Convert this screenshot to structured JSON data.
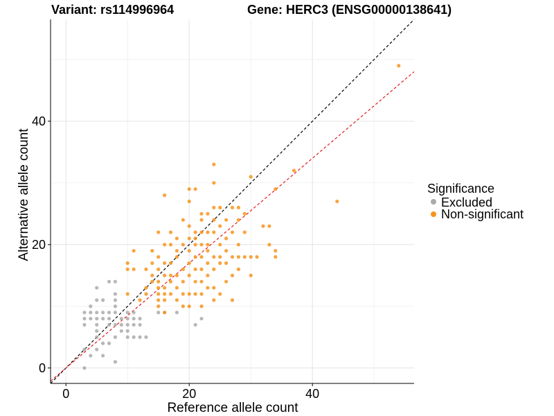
{
  "chart_data": {
    "type": "scatter",
    "title_left": "Variant: rs114996964",
    "title_right": "Gene: HERC3 (ENSG00000138641)",
    "xlabel": "Reference allele count",
    "ylabel": "Alternative allele count",
    "xlim": [
      -2.5,
      56.5
    ],
    "ylim": [
      -2.5,
      56.5
    ],
    "xticks": [
      0,
      20,
      40
    ],
    "yticks": [
      0,
      20,
      40
    ],
    "grid": true,
    "legend": {
      "title": "Significance",
      "position": "right",
      "entries": [
        {
          "label": "Excluded",
          "color": "#aaaaaa"
        },
        {
          "label": "Non-significant",
          "color": "#f7941d"
        }
      ]
    },
    "reference_lines": [
      {
        "name": "identity",
        "slope": 1,
        "intercept": 0,
        "color": "#000000",
        "style": "dashed"
      },
      {
        "name": "fitted",
        "slope": 0.85,
        "intercept": 0,
        "color": "#e41a1c",
        "style": "dashed"
      }
    ],
    "series": [
      {
        "name": "Excluded",
        "color": "#aaaaaa",
        "points": [
          [
            3,
            0
          ],
          [
            3,
            3
          ],
          [
            3,
            7
          ],
          [
            3,
            8
          ],
          [
            3,
            9
          ],
          [
            4,
            2
          ],
          [
            4,
            8
          ],
          [
            4,
            9
          ],
          [
            4,
            10
          ],
          [
            5,
            3
          ],
          [
            5,
            5
          ],
          [
            5,
            6
          ],
          [
            5,
            7
          ],
          [
            5,
            8
          ],
          [
            5,
            9
          ],
          [
            5,
            11
          ],
          [
            5,
            13
          ],
          [
            6,
            2
          ],
          [
            6,
            4
          ],
          [
            6,
            8
          ],
          [
            6,
            9
          ],
          [
            6,
            11
          ],
          [
            7,
            4
          ],
          [
            7,
            7
          ],
          [
            7,
            8
          ],
          [
            7,
            9
          ],
          [
            7,
            14
          ],
          [
            8,
            1
          ],
          [
            8,
            5
          ],
          [
            8,
            7
          ],
          [
            8,
            9
          ],
          [
            8,
            10
          ],
          [
            8,
            11
          ],
          [
            8,
            12
          ],
          [
            8,
            14
          ],
          [
            9,
            6
          ],
          [
            9,
            7
          ],
          [
            9,
            8
          ],
          [
            10,
            5
          ],
          [
            10,
            6
          ],
          [
            10,
            7
          ],
          [
            10,
            8
          ],
          [
            10,
            9
          ],
          [
            11,
            5
          ],
          [
            11,
            7
          ],
          [
            11,
            8
          ],
          [
            11,
            9
          ],
          [
            12,
            5
          ],
          [
            12,
            7
          ],
          [
            12,
            8
          ],
          [
            13,
            5
          ],
          [
            15,
            9
          ],
          [
            16,
            9
          ],
          [
            18,
            9
          ],
          [
            21,
            7
          ],
          [
            22,
            8
          ]
        ]
      },
      {
        "name": "Non-significant",
        "color": "#f7941d",
        "points": [
          [
            10,
            12
          ],
          [
            10,
            16
          ],
          [
            10,
            17
          ],
          [
            11,
            16
          ],
          [
            11,
            19
          ],
          [
            12,
            11
          ],
          [
            13,
            12
          ],
          [
            13,
            13
          ],
          [
            13,
            16
          ],
          [
            14,
            14
          ],
          [
            14,
            15
          ],
          [
            14,
            17
          ],
          [
            14,
            19
          ],
          [
            15,
            10
          ],
          [
            15,
            11
          ],
          [
            15,
            12
          ],
          [
            15,
            13
          ],
          [
            15,
            14
          ],
          [
            15,
            16
          ],
          [
            15,
            18
          ],
          [
            15,
            22
          ],
          [
            16,
            9
          ],
          [
            16,
            11
          ],
          [
            16,
            12
          ],
          [
            16,
            13
          ],
          [
            16,
            15
          ],
          [
            16,
            17
          ],
          [
            16,
            20
          ],
          [
            16,
            28
          ],
          [
            17,
            12
          ],
          [
            17,
            14
          ],
          [
            17,
            15
          ],
          [
            17,
            17
          ],
          [
            17,
            20
          ],
          [
            17,
            22
          ],
          [
            18,
            11
          ],
          [
            18,
            13
          ],
          [
            18,
            15
          ],
          [
            18,
            18
          ],
          [
            18,
            19
          ],
          [
            18,
            21
          ],
          [
            19,
            10
          ],
          [
            19,
            12
          ],
          [
            19,
            14
          ],
          [
            19,
            16
          ],
          [
            19,
            20
          ],
          [
            19,
            24
          ],
          [
            20,
            10
          ],
          [
            20,
            12
          ],
          [
            20,
            15
          ],
          [
            20,
            17
          ],
          [
            20,
            19
          ],
          [
            20,
            21
          ],
          [
            20,
            23
          ],
          [
            20,
            27
          ],
          [
            20,
            29
          ],
          [
            21,
            12
          ],
          [
            21,
            14
          ],
          [
            21,
            16
          ],
          [
            21,
            18
          ],
          [
            21,
            20
          ],
          [
            21,
            21
          ],
          [
            21,
            22
          ],
          [
            21,
            29
          ],
          [
            22,
            10
          ],
          [
            22,
            12
          ],
          [
            22,
            14
          ],
          [
            22,
            16
          ],
          [
            22,
            18
          ],
          [
            22,
            20
          ],
          [
            22,
            22
          ],
          [
            22,
            24
          ],
          [
            22,
            25
          ],
          [
            23,
            13
          ],
          [
            23,
            15
          ],
          [
            23,
            17
          ],
          [
            23,
            19
          ],
          [
            23,
            20
          ],
          [
            23,
            22
          ],
          [
            23,
            25
          ],
          [
            24,
            11
          ],
          [
            24,
            13
          ],
          [
            24,
            16
          ],
          [
            24,
            18
          ],
          [
            24,
            22
          ],
          [
            24,
            24
          ],
          [
            24,
            26
          ],
          [
            24,
            30
          ],
          [
            24,
            33
          ],
          [
            25,
            12
          ],
          [
            25,
            17
          ],
          [
            25,
            18
          ],
          [
            25,
            20
          ],
          [
            25,
            23
          ],
          [
            25,
            26
          ],
          [
            26,
            14
          ],
          [
            26,
            17
          ],
          [
            26,
            19
          ],
          [
            26,
            21
          ],
          [
            26,
            24
          ],
          [
            27,
            11
          ],
          [
            27,
            15
          ],
          [
            27,
            18
          ],
          [
            27,
            22
          ],
          [
            27,
            26
          ],
          [
            28,
            16
          ],
          [
            28,
            18
          ],
          [
            28,
            20
          ],
          [
            28,
            24
          ],
          [
            28,
            26
          ],
          [
            29,
            18
          ],
          [
            29,
            22
          ],
          [
            29,
            25
          ],
          [
            30,
            15
          ],
          [
            30,
            18
          ],
          [
            30,
            31
          ],
          [
            31,
            18
          ],
          [
            32,
            23
          ],
          [
            33,
            20
          ],
          [
            33,
            23
          ],
          [
            34,
            18
          ],
          [
            34,
            19
          ],
          [
            34,
            29
          ],
          [
            37,
            32
          ],
          [
            44,
            27
          ],
          [
            54,
            49
          ]
        ]
      }
    ]
  }
}
